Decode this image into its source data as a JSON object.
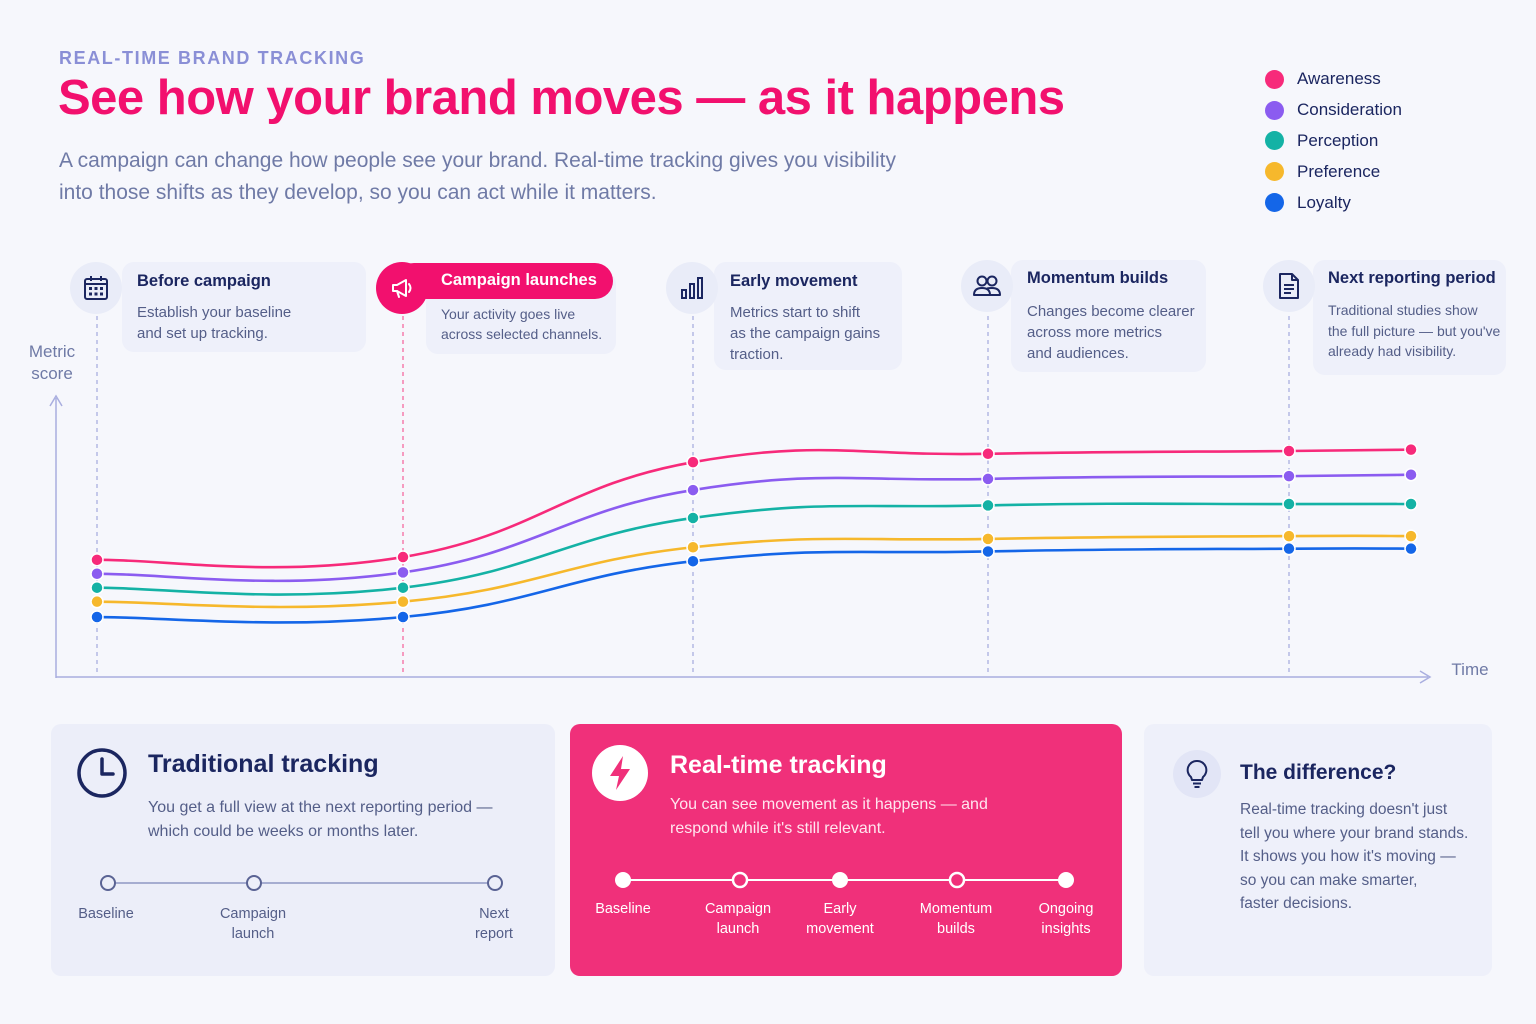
{
  "header": {
    "eyebrow": "REAL-TIME BRAND TRACKING",
    "title": "See how your brand moves — as it happens",
    "subtitle_line1": "A campaign can change how people see your brand. Real-time tracking gives you visibility",
    "subtitle_line2": "into those shifts as they develop, so you can act while it matters."
  },
  "colors": {
    "accent": "#f2106e",
    "navy": "#1b2660",
    "muted": "#6f7aa6"
  },
  "legend": [
    {
      "label": "Awareness",
      "color": "#f72a7a"
    },
    {
      "label": "Consideration",
      "color": "#8b5cf0"
    },
    {
      "label": "Perception",
      "color": "#14b2a5"
    },
    {
      "label": "Preference",
      "color": "#f6b82c"
    },
    {
      "label": "Loyalty",
      "color": "#1466e8"
    }
  ],
  "steps": [
    {
      "title": "Before campaign",
      "desc": [
        "Establish your baseline",
        "and set up tracking."
      ],
      "icon": "calendar-icon"
    },
    {
      "title": "Campaign launches",
      "desc": [
        "Your activity goes live",
        "across selected channels."
      ],
      "icon": "megaphone-icon"
    },
    {
      "title": "Early movement",
      "desc": [
        "Metrics start to shift",
        "as the campaign gains",
        "traction."
      ],
      "icon": "bar-chart-icon"
    },
    {
      "title": "Momentum builds",
      "desc": [
        "Changes become clearer",
        "across more metrics",
        "and audiences."
      ],
      "icon": "people-icon"
    },
    {
      "title": "Next reporting period",
      "desc": [
        "Traditional studies show",
        "the full picture — but you've",
        "already had visibility."
      ],
      "icon": "document-icon"
    }
  ],
  "chart_data": {
    "type": "line",
    "ylabel": "Metric score",
    "xlabel": "Time",
    "x": [
      0,
      1,
      2,
      3,
      4,
      5
    ],
    "ylim": [
      0,
      100
    ],
    "series": [
      {
        "name": "Awareness",
        "color": "#f72a7a",
        "values": [
          42,
          43,
          77,
          80,
          81,
          81.5
        ]
      },
      {
        "name": "Consideration",
        "color": "#8b5cf0",
        "values": [
          37,
          37.5,
          67,
          71,
          72,
          72.5
        ]
      },
      {
        "name": "Perception",
        "color": "#14b2a5",
        "values": [
          32,
          32,
          57,
          61.5,
          62,
          62
        ]
      },
      {
        "name": "Preference",
        "color": "#f6b82c",
        "values": [
          27,
          27,
          46.5,
          49.5,
          50.5,
          50.5
        ]
      },
      {
        "name": "Loyalty",
        "color": "#1466e8",
        "values": [
          21.5,
          21.5,
          41.5,
          45,
          46,
          46
        ]
      }
    ]
  },
  "panels": {
    "traditional": {
      "title": "Traditional tracking",
      "desc": [
        "You get a full view at the next reporting period —",
        "which could be weeks or months later."
      ],
      "timeline": [
        [
          "Baseline"
        ],
        [
          "Campaign",
          "launch"
        ],
        [
          "Next",
          "report"
        ]
      ]
    },
    "realtime": {
      "title": "Real-time tracking",
      "desc": [
        "You can see movement as it happens — and",
        "respond while it's still relevant."
      ],
      "timeline": [
        [
          "Baseline"
        ],
        [
          "Campaign",
          "launch"
        ],
        [
          "Early",
          "movement"
        ],
        [
          "Momentum",
          "builds"
        ],
        [
          "Ongoing",
          "insights"
        ]
      ]
    },
    "difference": {
      "title": "The difference?",
      "desc": [
        "Real-time tracking doesn't just",
        "tell you where your brand stands.",
        "It shows you how it's moving —",
        "so you can make smarter,",
        "faster decisions."
      ]
    }
  }
}
